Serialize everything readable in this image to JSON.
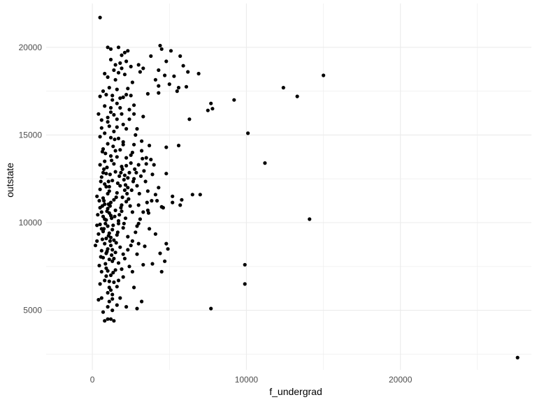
{
  "chart_data": {
    "type": "scatter",
    "title": "",
    "xlabel": "f_undergrad",
    "ylabel": "outstate",
    "xlim": [
      -3000,
      28500
    ],
    "ylim": [
      1600,
      22500
    ],
    "xticks": [
      0,
      10000,
      20000
    ],
    "xticks_minor": [
      -5000,
      5000,
      15000,
      25000
    ],
    "yticks": [
      5000,
      10000,
      15000,
      20000
    ],
    "yticks_minor": [
      2500,
      7500,
      12500,
      17500
    ],
    "grid": true,
    "point_color": "#000000",
    "grid_color": "#ebebeb",
    "points": [
      [
        500,
        21700
      ],
      [
        1000,
        20000
      ],
      [
        1200,
        19900
      ],
      [
        1700,
        20000
      ],
      [
        4400,
        20100
      ],
      [
        4500,
        19900
      ],
      [
        2100,
        19700
      ],
      [
        2300,
        19800
      ],
      [
        3800,
        19500
      ],
      [
        5100,
        19800
      ],
      [
        5700,
        19500
      ],
      [
        1200,
        19300
      ],
      [
        1500,
        19000
      ],
      [
        1800,
        19100
      ],
      [
        1900,
        18800
      ],
      [
        2200,
        19200
      ],
      [
        2500,
        18900
      ],
      [
        3000,
        19000
      ],
      [
        3300,
        18800
      ],
      [
        4800,
        19200
      ],
      [
        4700,
        18400
      ],
      [
        4300,
        18700
      ],
      [
        3100,
        18600
      ],
      [
        6200,
        18600
      ],
      [
        6900,
        18500
      ],
      [
        15000,
        18400
      ],
      [
        800,
        18500
      ],
      [
        1000,
        18300
      ],
      [
        1400,
        18700
      ],
      [
        2600,
        18000
      ],
      [
        4300,
        17800
      ],
      [
        5000,
        17900
      ],
      [
        5600,
        17700
      ],
      [
        12400,
        17700
      ],
      [
        700,
        17500
      ],
      [
        1100,
        17700
      ],
      [
        1600,
        17600
      ],
      [
        2200,
        17300
      ],
      [
        900,
        17300
      ],
      [
        500,
        17200
      ],
      [
        1300,
        17000
      ],
      [
        1800,
        17100
      ],
      [
        4300,
        17400
      ],
      [
        5500,
        17500
      ],
      [
        13300,
        17200
      ],
      [
        9200,
        17000
      ],
      [
        7700,
        16800
      ],
      [
        1600,
        16800
      ],
      [
        2700,
        16700
      ],
      [
        7800,
        16500
      ],
      [
        7500,
        16400
      ],
      [
        1200,
        16300
      ],
      [
        1900,
        16200
      ],
      [
        400,
        16200
      ],
      [
        2700,
        16200
      ],
      [
        1000,
        16000
      ],
      [
        1600,
        15900
      ],
      [
        2400,
        15900
      ],
      [
        6300,
        15900
      ],
      [
        2000,
        15600
      ],
      [
        1100,
        15500
      ],
      [
        600,
        15400
      ],
      [
        800,
        15100
      ],
      [
        1400,
        15200
      ],
      [
        2800,
        15000
      ],
      [
        10100,
        15100
      ],
      [
        500,
        14900
      ],
      [
        1700,
        14800
      ],
      [
        2000,
        14600
      ],
      [
        3700,
        14400
      ],
      [
        4800,
        14300
      ],
      [
        5600,
        14400
      ],
      [
        1000,
        14500
      ],
      [
        700,
        14200
      ],
      [
        1500,
        14100
      ],
      [
        2600,
        14000
      ],
      [
        3200,
        14100
      ],
      [
        3500,
        13700
      ],
      [
        3800,
        13600
      ],
      [
        4000,
        13300
      ],
      [
        2200,
        13700
      ],
      [
        1200,
        13800
      ],
      [
        800,
        13500
      ],
      [
        500,
        13300
      ],
      [
        1900,
        13200
      ],
      [
        2500,
        13400
      ],
      [
        3000,
        13300
      ],
      [
        11200,
        13400
      ],
      [
        1500,
        12900
      ],
      [
        900,
        12800
      ],
      [
        2100,
        12700
      ],
      [
        600,
        12600
      ],
      [
        2700,
        12500
      ],
      [
        4800,
        12800
      ],
      [
        1300,
        12400
      ],
      [
        800,
        12200
      ],
      [
        1800,
        12100
      ],
      [
        2300,
        12000
      ],
      [
        4300,
        12000
      ],
      [
        2900,
        12100
      ],
      [
        500,
        11900
      ],
      [
        1100,
        11800
      ],
      [
        1600,
        11700
      ],
      [
        3600,
        11800
      ],
      [
        4100,
        11600
      ],
      [
        6500,
        11600
      ],
      [
        7000,
        11600
      ],
      [
        5200,
        11500
      ],
      [
        700,
        11400
      ],
      [
        1400,
        11300
      ],
      [
        2200,
        11200
      ],
      [
        5800,
        11300
      ],
      [
        1900,
        11000
      ],
      [
        3000,
        11000
      ],
      [
        4500,
        10900
      ],
      [
        5700,
        11000
      ],
      [
        300,
        11500
      ],
      [
        1000,
        10800
      ],
      [
        1500,
        10700
      ],
      [
        2600,
        10600
      ],
      [
        3300,
        10600
      ],
      [
        3600,
        10700
      ],
      [
        600,
        10600
      ],
      [
        1200,
        10400
      ],
      [
        800,
        10200
      ],
      [
        1700,
        10100
      ],
      [
        3100,
        10200
      ],
      [
        14100,
        10200
      ],
      [
        500,
        9900
      ],
      [
        1000,
        9800
      ],
      [
        1300,
        9600
      ],
      [
        2000,
        9700
      ],
      [
        2900,
        9800
      ],
      [
        700,
        9500
      ],
      [
        1100,
        9400
      ],
      [
        1600,
        9300
      ],
      [
        2300,
        9200
      ],
      [
        900,
        9100
      ],
      [
        1400,
        9000
      ],
      [
        800,
        8800
      ],
      [
        1200,
        8700
      ],
      [
        200,
        8700
      ],
      [
        1800,
        8600
      ],
      [
        2500,
        8700
      ],
      [
        3000,
        8800
      ],
      [
        4800,
        8800
      ],
      [
        1000,
        8500
      ],
      [
        600,
        8400
      ],
      [
        1500,
        8300
      ],
      [
        4900,
        8500
      ],
      [
        2000,
        8200
      ],
      [
        2900,
        8200
      ],
      [
        700,
        8000
      ],
      [
        1100,
        7900
      ],
      [
        1300,
        7800
      ],
      [
        1700,
        7700
      ],
      [
        2400,
        7500
      ],
      [
        3300,
        7600
      ],
      [
        4700,
        7800
      ],
      [
        9900,
        7600
      ],
      [
        900,
        7400
      ],
      [
        1500,
        7300
      ],
      [
        2600,
        7200
      ],
      [
        4500,
        7200
      ],
      [
        600,
        7200
      ],
      [
        1200,
        7000
      ],
      [
        2000,
        6900
      ],
      [
        800,
        6700
      ],
      [
        1400,
        6600
      ],
      [
        1700,
        6700
      ],
      [
        1100,
        6300
      ],
      [
        500,
        6500
      ],
      [
        2700,
        6300
      ],
      [
        9900,
        6500
      ],
      [
        1000,
        6000
      ],
      [
        1300,
        5900
      ],
      [
        600,
        5700
      ],
      [
        1800,
        5700
      ],
      [
        400,
        5600
      ],
      [
        1100,
        5500
      ],
      [
        3200,
        5500
      ],
      [
        1600,
        5300
      ],
      [
        1000,
        5200
      ],
      [
        2200,
        5200
      ],
      [
        2900,
        5100
      ],
      [
        7700,
        5100
      ],
      [
        1300,
        5000
      ],
      [
        700,
        4900
      ],
      [
        1200,
        4500
      ],
      [
        800,
        4400
      ],
      [
        1000,
        4500
      ],
      [
        1400,
        4400
      ],
      [
        27600,
        2300
      ],
      [
        1050,
        11050
      ],
      [
        1150,
        10950
      ],
      [
        950,
        10650
      ],
      [
        1250,
        10250
      ],
      [
        850,
        9950
      ],
      [
        1350,
        9850
      ],
      [
        1450,
        10350
      ],
      [
        650,
        10950
      ],
      [
        750,
        11250
      ],
      [
        1550,
        11450
      ],
      [
        1650,
        12250
      ],
      [
        1750,
        12650
      ],
      [
        1850,
        12850
      ],
      [
        1950,
        13050
      ],
      [
        2050,
        12450
      ],
      [
        2150,
        12150
      ],
      [
        2250,
        11650
      ],
      [
        2350,
        11350
      ],
      [
        1050,
        12350
      ],
      [
        1150,
        12750
      ],
      [
        950,
        13150
      ],
      [
        1250,
        13550
      ],
      [
        850,
        13950
      ],
      [
        1350,
        14350
      ],
      [
        1450,
        14750
      ],
      [
        650,
        14050
      ],
      [
        750,
        13050
      ],
      [
        550,
        12350
      ],
      [
        450,
        11250
      ],
      [
        350,
        10450
      ],
      [
        1050,
        9250
      ],
      [
        1150,
        8950
      ],
      [
        950,
        8350
      ],
      [
        1250,
        8150
      ],
      [
        850,
        7650
      ],
      [
        1350,
        7150
      ],
      [
        650,
        9050
      ],
      [
        750,
        9650
      ],
      [
        550,
        8050
      ],
      [
        450,
        7550
      ],
      [
        1550,
        8850
      ],
      [
        1650,
        9450
      ],
      [
        1750,
        10450
      ],
      [
        1850,
        10850
      ],
      [
        1950,
        11450
      ],
      [
        2050,
        9950
      ],
      [
        2150,
        10250
      ],
      [
        2450,
        10950
      ],
      [
        2550,
        11850
      ],
      [
        2650,
        12350
      ],
      [
        2750,
        13050
      ],
      [
        2850,
        12850
      ],
      [
        3050,
        11650
      ],
      [
        3150,
        12650
      ],
      [
        3250,
        13650
      ],
      [
        3350,
        12950
      ],
      [
        3450,
        12350
      ],
      [
        3550,
        11150
      ],
      [
        3650,
        10550
      ],
      [
        3850,
        11250
      ],
      [
        1000,
        15750
      ],
      [
        1200,
        16550
      ],
      [
        1400,
        16150
      ],
      [
        1600,
        15450
      ],
      [
        1800,
        16550
      ],
      [
        2000,
        17150
      ],
      [
        800,
        16650
      ],
      [
        600,
        15850
      ],
      [
        1300,
        17250
      ],
      [
        1500,
        18150
      ],
      [
        1700,
        18550
      ],
      [
        1900,
        19550
      ],
      [
        2100,
        18450
      ],
      [
        2300,
        17650
      ],
      [
        2500,
        17250
      ],
      [
        2400,
        16450
      ],
      [
        2200,
        15350
      ],
      [
        1200,
        14850
      ],
      [
        1400,
        13350
      ],
      [
        1600,
        13750
      ],
      [
        1800,
        14150
      ],
      [
        2000,
        14450
      ],
      [
        2200,
        13250
      ],
      [
        2400,
        12850
      ],
      [
        900,
        12050
      ],
      [
        700,
        12850
      ],
      [
        500,
        10850
      ],
      [
        300,
        9850
      ],
      [
        400,
        9350
      ],
      [
        300,
        8950
      ],
      [
        1100,
        10550
      ],
      [
        1200,
        9150
      ],
      [
        1300,
        8450
      ],
      [
        1400,
        7950
      ],
      [
        900,
        10150
      ],
      [
        1000,
        11650
      ],
      [
        1100,
        12050
      ],
      [
        1200,
        11150
      ],
      [
        800,
        11050
      ],
      [
        700,
        10350
      ],
      [
        600,
        9650
      ],
      [
        900,
        8250
      ],
      [
        1000,
        7250
      ],
      [
        1100,
        6650
      ],
      [
        1200,
        6150
      ],
      [
        1300,
        5650
      ],
      [
        900,
        6950
      ],
      [
        1600,
        6350
      ],
      [
        1900,
        7350
      ],
      [
        2100,
        7950
      ],
      [
        2300,
        8450
      ],
      [
        2600,
        8950
      ],
      [
        2800,
        9450
      ],
      [
        1700,
        9950
      ],
      [
        1900,
        10650
      ],
      [
        2100,
        11850
      ],
      [
        2300,
        12550
      ],
      [
        2500,
        13850
      ],
      [
        2700,
        14450
      ],
      [
        2900,
        15350
      ],
      [
        3200,
        14650
      ],
      [
        3500,
        13350
      ],
      [
        3900,
        12750
      ],
      [
        4200,
        11250
      ],
      [
        4600,
        10850
      ],
      [
        5200,
        11150
      ],
      [
        3300,
        16050
      ],
      [
        3600,
        17350
      ],
      [
        4100,
        18150
      ],
      [
        5300,
        18350
      ],
      [
        5900,
        18950
      ],
      [
        6100,
        17750
      ],
      [
        3700,
        9650
      ],
      [
        4100,
        9350
      ],
      [
        4400,
        8250
      ],
      [
        3900,
        7650
      ],
      [
        3400,
        8650
      ],
      [
        3000,
        9950
      ]
    ]
  }
}
